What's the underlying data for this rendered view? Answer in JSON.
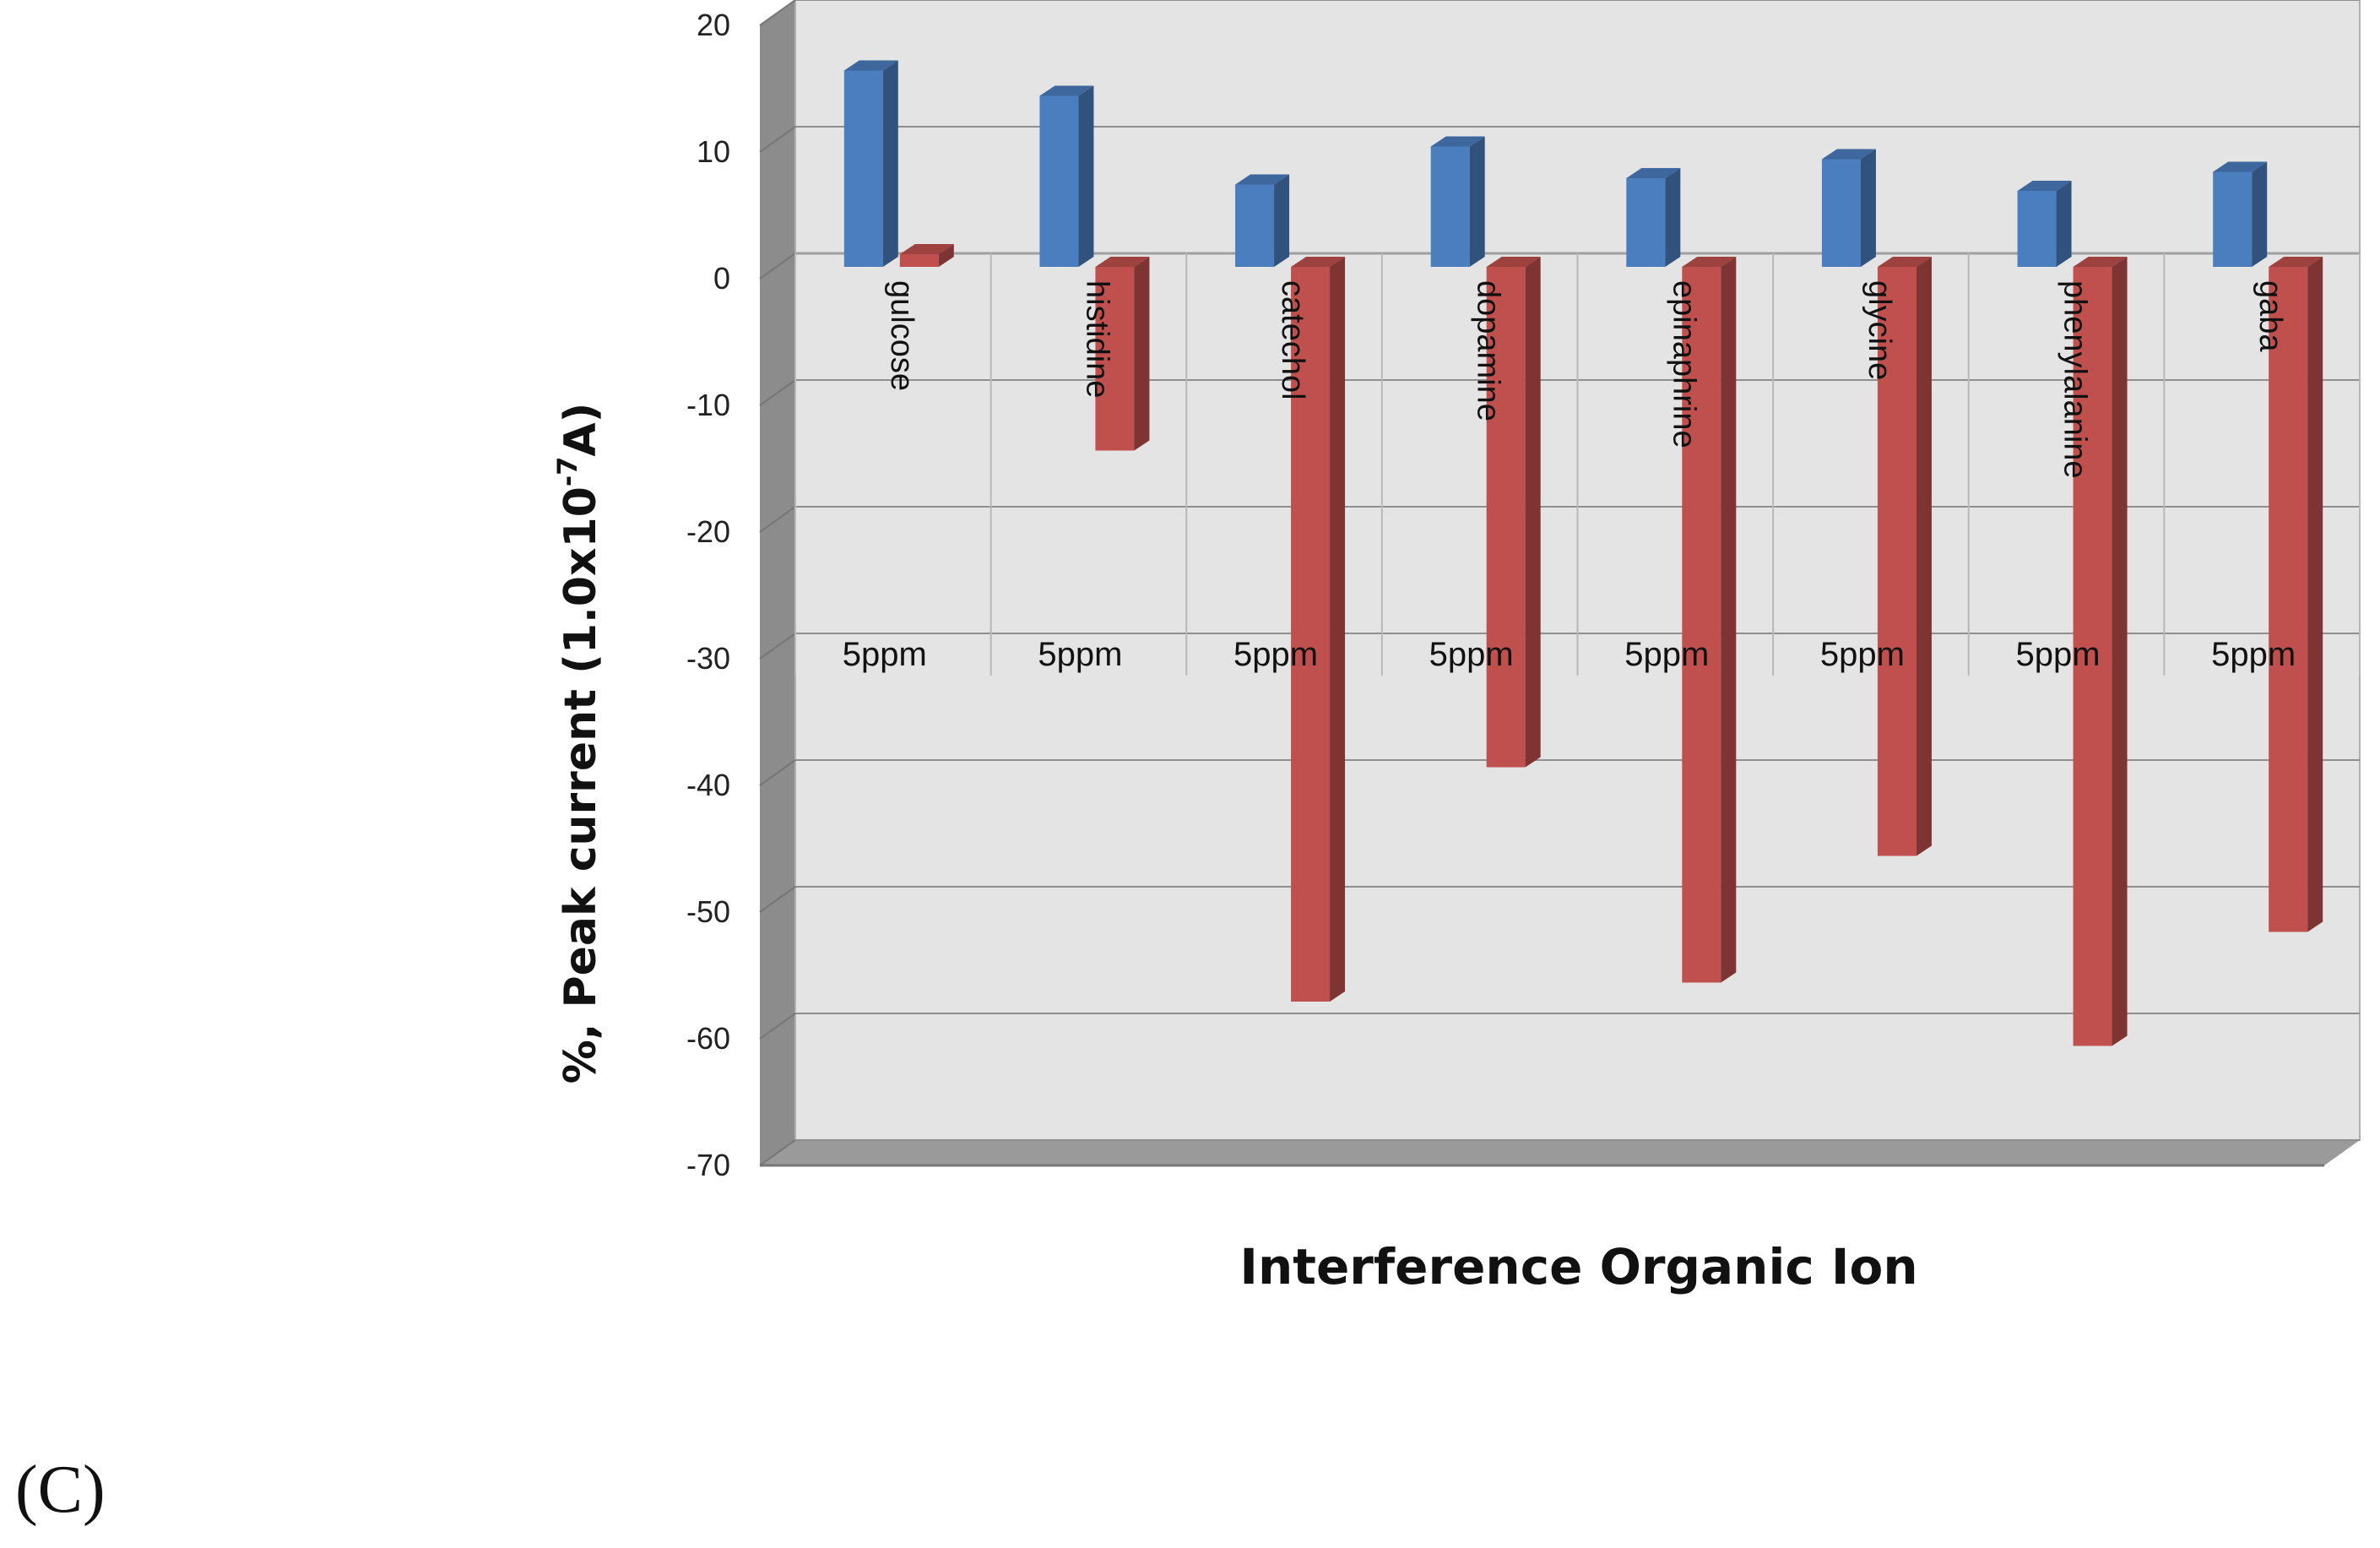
{
  "panel_label": "(C)",
  "chart_data": {
    "type": "bar",
    "title": "",
    "xlabel": "Interference Organic Ion",
    "ylabel": "%, Peak current (1.0x10",
    "ylabel_sup": "-7",
    "ylabel_end": "A)",
    "ylim": [
      -70,
      20
    ],
    "yticks": [
      20,
      10,
      0,
      -10,
      -20,
      -30,
      -40,
      -50,
      -60,
      -70
    ],
    "grid": true,
    "categories": [
      "gulcose",
      "histidine",
      "catechol",
      "dopamine",
      "epinaphrine",
      "glycine",
      "phenylalanine",
      "gaba"
    ],
    "group_labels": [
      "5ppm",
      "5ppm",
      "5ppm",
      "5ppm",
      "5ppm",
      "5ppm",
      "5ppm",
      "5ppm"
    ],
    "series": [
      {
        "color": "#4a7ebf",
        "values": [
          15.5,
          13.5,
          6.5,
          9.5,
          7,
          8.5,
          6,
          7.5
        ]
      },
      {
        "color": "#c0504d",
        "values": [
          1,
          -14.5,
          -58,
          -39.5,
          -56.5,
          -46.5,
          -61.5,
          -52.5
        ]
      }
    ]
  }
}
